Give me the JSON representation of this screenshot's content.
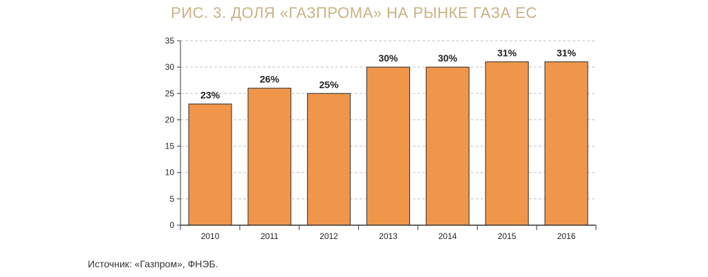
{
  "title": "РИС. 3. ДОЛЯ «ГАЗПРОМА» НА РЫНКЕ ГАЗА ЕС",
  "source": "Источник: «Газпром», ФНЭБ.",
  "colors": {
    "title": "#C9B183",
    "bar": "#F0964A",
    "bar_stroke": "#2B2B2B",
    "grid": "#BFBFBF",
    "axis": "#333333",
    "text": "#222222"
  },
  "chart_data": {
    "type": "bar",
    "categories": [
      "2010",
      "2011",
      "2012",
      "2013",
      "2014",
      "2015",
      "2016"
    ],
    "values": [
      23,
      26,
      25,
      30,
      30,
      31,
      31
    ],
    "data_labels": [
      "23%",
      "26%",
      "25%",
      "30%",
      "30%",
      "31%",
      "31%"
    ],
    "yticks": [
      "0",
      "5",
      "10",
      "15",
      "20",
      "25",
      "30",
      "35"
    ],
    "ylim": [
      0,
      35
    ],
    "grid": "dashed-horizontal",
    "legend": "none"
  }
}
